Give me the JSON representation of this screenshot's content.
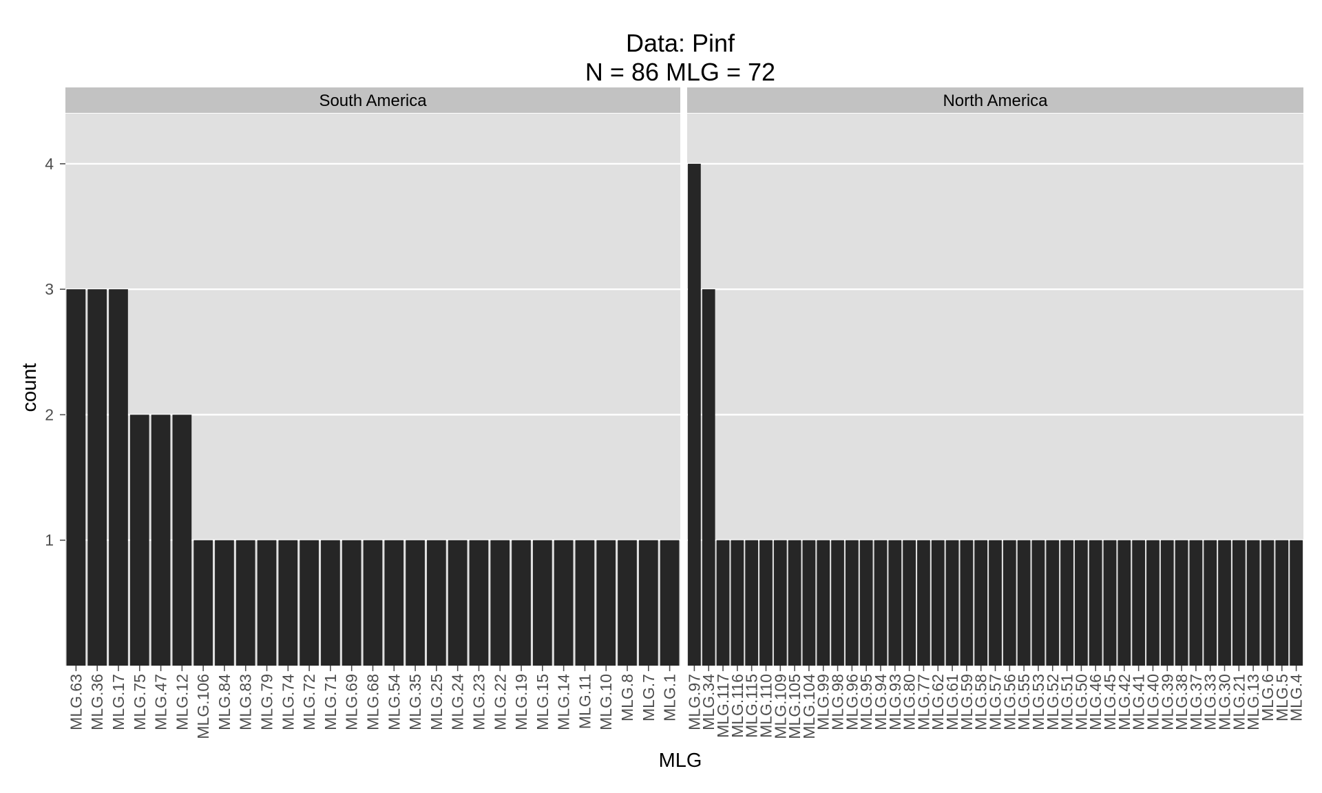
{
  "chart_data": {
    "type": "bar",
    "title": "Data: Pinf",
    "subtitle": "N = 86 MLG = 72",
    "xlabel": "MLG",
    "ylabel": "count",
    "ylim": [
      0,
      4.4
    ],
    "yticks": [
      1,
      2,
      3,
      4
    ],
    "grid": true,
    "colors": {
      "bar": "#262626",
      "panel": "#e0e0e0",
      "strip": "#c2c2c2",
      "grid": "#ffffff"
    },
    "facets": [
      {
        "name": "South America",
        "categories": [
          "MLG.63",
          "MLG.36",
          "MLG.17",
          "MLG.75",
          "MLG.47",
          "MLG.12",
          "MLG.106",
          "MLG.84",
          "MLG.83",
          "MLG.79",
          "MLG.74",
          "MLG.72",
          "MLG.71",
          "MLG.69",
          "MLG.68",
          "MLG.54",
          "MLG.35",
          "MLG.25",
          "MLG.24",
          "MLG.23",
          "MLG.22",
          "MLG.19",
          "MLG.15",
          "MLG.14",
          "MLG.11",
          "MLG.10",
          "MLG.8",
          "MLG.7",
          "MLG.1"
        ],
        "values": [
          3,
          3,
          3,
          2,
          2,
          2,
          1,
          1,
          1,
          1,
          1,
          1,
          1,
          1,
          1,
          1,
          1,
          1,
          1,
          1,
          1,
          1,
          1,
          1,
          1,
          1,
          1,
          1,
          1
        ]
      },
      {
        "name": "North America",
        "categories": [
          "MLG.97",
          "MLG.34",
          "MLG.117",
          "MLG.116",
          "MLG.115",
          "MLG.110",
          "MLG.109",
          "MLG.105",
          "MLG.104",
          "MLG.99",
          "MLG.98",
          "MLG.96",
          "MLG.95",
          "MLG.94",
          "MLG.93",
          "MLG.80",
          "MLG.77",
          "MLG.62",
          "MLG.61",
          "MLG.59",
          "MLG.58",
          "MLG.57",
          "MLG.56",
          "MLG.55",
          "MLG.53",
          "MLG.52",
          "MLG.51",
          "MLG.50",
          "MLG.46",
          "MLG.45",
          "MLG.42",
          "MLG.41",
          "MLG.40",
          "MLG.39",
          "MLG.38",
          "MLG.37",
          "MLG.33",
          "MLG.30",
          "MLG.21",
          "MLG.13",
          "MLG.6",
          "MLG.5",
          "MLG.4"
        ],
        "values": [
          4,
          3,
          1,
          1,
          1,
          1,
          1,
          1,
          1,
          1,
          1,
          1,
          1,
          1,
          1,
          1,
          1,
          1,
          1,
          1,
          1,
          1,
          1,
          1,
          1,
          1,
          1,
          1,
          1,
          1,
          1,
          1,
          1,
          1,
          1,
          1,
          1,
          1,
          1,
          1,
          1,
          1,
          1
        ]
      }
    ]
  }
}
